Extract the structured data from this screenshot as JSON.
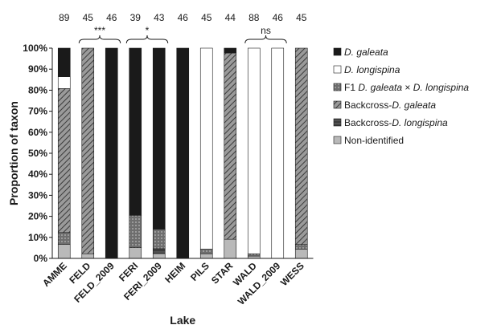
{
  "chart_data": {
    "type": "bar",
    "stacked": true,
    "ylabel": "Proportion of taxon",
    "xlabel": "Lake",
    "ylim": [
      0,
      100
    ],
    "yticks": [
      "0%",
      "10%",
      "20%",
      "30%",
      "40%",
      "50%",
      "60%",
      "70%",
      "80%",
      "90%",
      "100%"
    ],
    "categories": [
      "AMME",
      "FELD",
      "FELD_2009",
      "FERI",
      "FERI_2009",
      "HEIM",
      "PILS",
      "STAR",
      "WALD",
      "WALD_2009",
      "WESS"
    ],
    "sample_sizes": [
      "89",
      "45",
      "46",
      "39",
      "43",
      "46",
      "45",
      "44",
      "88",
      "46",
      "45"
    ],
    "series": [
      {
        "name": "Non-identified",
        "values": [
          6.7,
          2.2,
          0,
          5.1,
          2.3,
          0,
          2.2,
          9.1,
          1.1,
          0,
          4.4
        ]
      },
      {
        "name": "Backcross-D. longispina",
        "values": [
          0,
          0,
          0,
          0,
          2.3,
          0,
          0,
          0,
          0,
          0,
          0
        ]
      },
      {
        "name": "F1 D. galeata × D. longispina",
        "values": [
          5.6,
          0,
          0,
          15.4,
          9.3,
          0,
          2.2,
          0,
          1.1,
          0,
          2.2
        ]
      },
      {
        "name": "Backcross-D. galeata",
        "values": [
          68.5,
          97.8,
          0,
          0,
          0,
          0,
          0,
          88.6,
          0,
          0,
          93.4
        ]
      },
      {
        "name": "D. longispina",
        "values": [
          5.6,
          0,
          0,
          0,
          0,
          0,
          95.6,
          0,
          97.8,
          100,
          0
        ]
      },
      {
        "name": "D. galeata",
        "values": [
          13.6,
          0,
          100,
          79.5,
          86.1,
          100,
          0,
          2.3,
          0,
          0,
          0
        ]
      }
    ],
    "significance": [
      {
        "label": "***",
        "from": "FELD",
        "to": "FELD_2009"
      },
      {
        "label": "*",
        "from": "FERI",
        "to": "FERI_2009"
      },
      {
        "label": "ns",
        "from": "WALD",
        "to": "WALD_2009"
      }
    ],
    "legend": [
      {
        "series": "D. galeata",
        "parts": [
          {
            "text": "D. galeata",
            "italic": true
          }
        ]
      },
      {
        "series": "D. longispina",
        "parts": [
          {
            "text": "D. longispina",
            "italic": true
          }
        ]
      },
      {
        "series": "F1 D. galeata × D. longispina",
        "parts": [
          {
            "text": "F1 ",
            "italic": false
          },
          {
            "text": "D. galeata",
            "italic": true
          },
          {
            "text": " × ",
            "italic": false
          },
          {
            "text": "D. longispina",
            "italic": true
          }
        ]
      },
      {
        "series": "Backcross-D. galeata",
        "parts": [
          {
            "text": "Backcross-",
            "italic": false
          },
          {
            "text": "D. galeata",
            "italic": true
          }
        ]
      },
      {
        "series": "Backcross-D. longispina",
        "parts": [
          {
            "text": "Backcross-",
            "italic": false
          },
          {
            "text": "D. longispina",
            "italic": true
          }
        ]
      },
      {
        "series": "Non-identified",
        "parts": [
          {
            "text": "Non-identified",
            "italic": false
          }
        ]
      }
    ],
    "legend_position": "right",
    "grid": false,
    "colors": {
      "D. galeata": "#1a1a1a",
      "D. longispina": "#ffffff",
      "F1 D. galeata × D. longispina": "#7a7a7a",
      "Backcross-D. galeata": "#8a8a8a",
      "Backcross-D. longispina": "#4a4a4a",
      "Non-identified": "#b5b5b5"
    }
  }
}
